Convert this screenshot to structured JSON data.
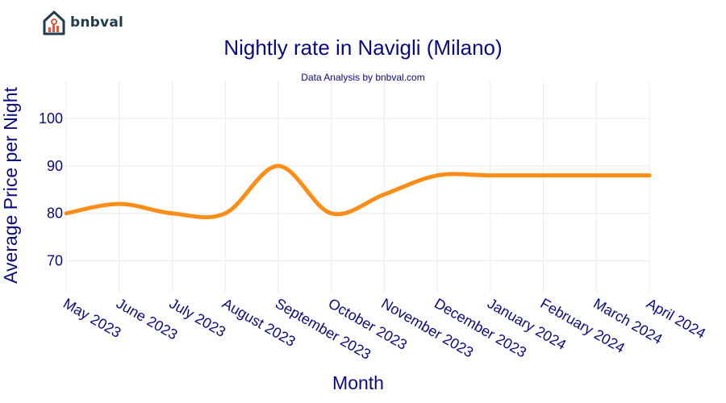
{
  "brand": {
    "name": "bnbval",
    "logo_icon": "house-chart-icon"
  },
  "colors": {
    "line": "#ff8c14",
    "text": "#0a0a80",
    "grid": "#ececec"
  },
  "chart_data": {
    "type": "line",
    "title": "Nightly rate in Navigli (Milano)",
    "subtitle": "Data Analysis by bnbval.com",
    "xlabel": "Month",
    "ylabel": "Average Price per Night",
    "categories": [
      "May 2023",
      "June 2023",
      "July 2023",
      "August 2023",
      "September 2023",
      "October 2023",
      "November 2023",
      "December 2023",
      "January 2024",
      "February 2024",
      "March 2024",
      "April 2024"
    ],
    "series": [
      {
        "values": [
          80,
          82,
          80,
          80,
          90,
          80,
          84,
          88,
          88,
          88,
          88,
          88
        ]
      }
    ],
    "yticks": [
      70,
      80,
      90,
      100
    ],
    "ylim": [
      63.3,
      108
    ],
    "grid": true,
    "line_shape": "spline"
  }
}
